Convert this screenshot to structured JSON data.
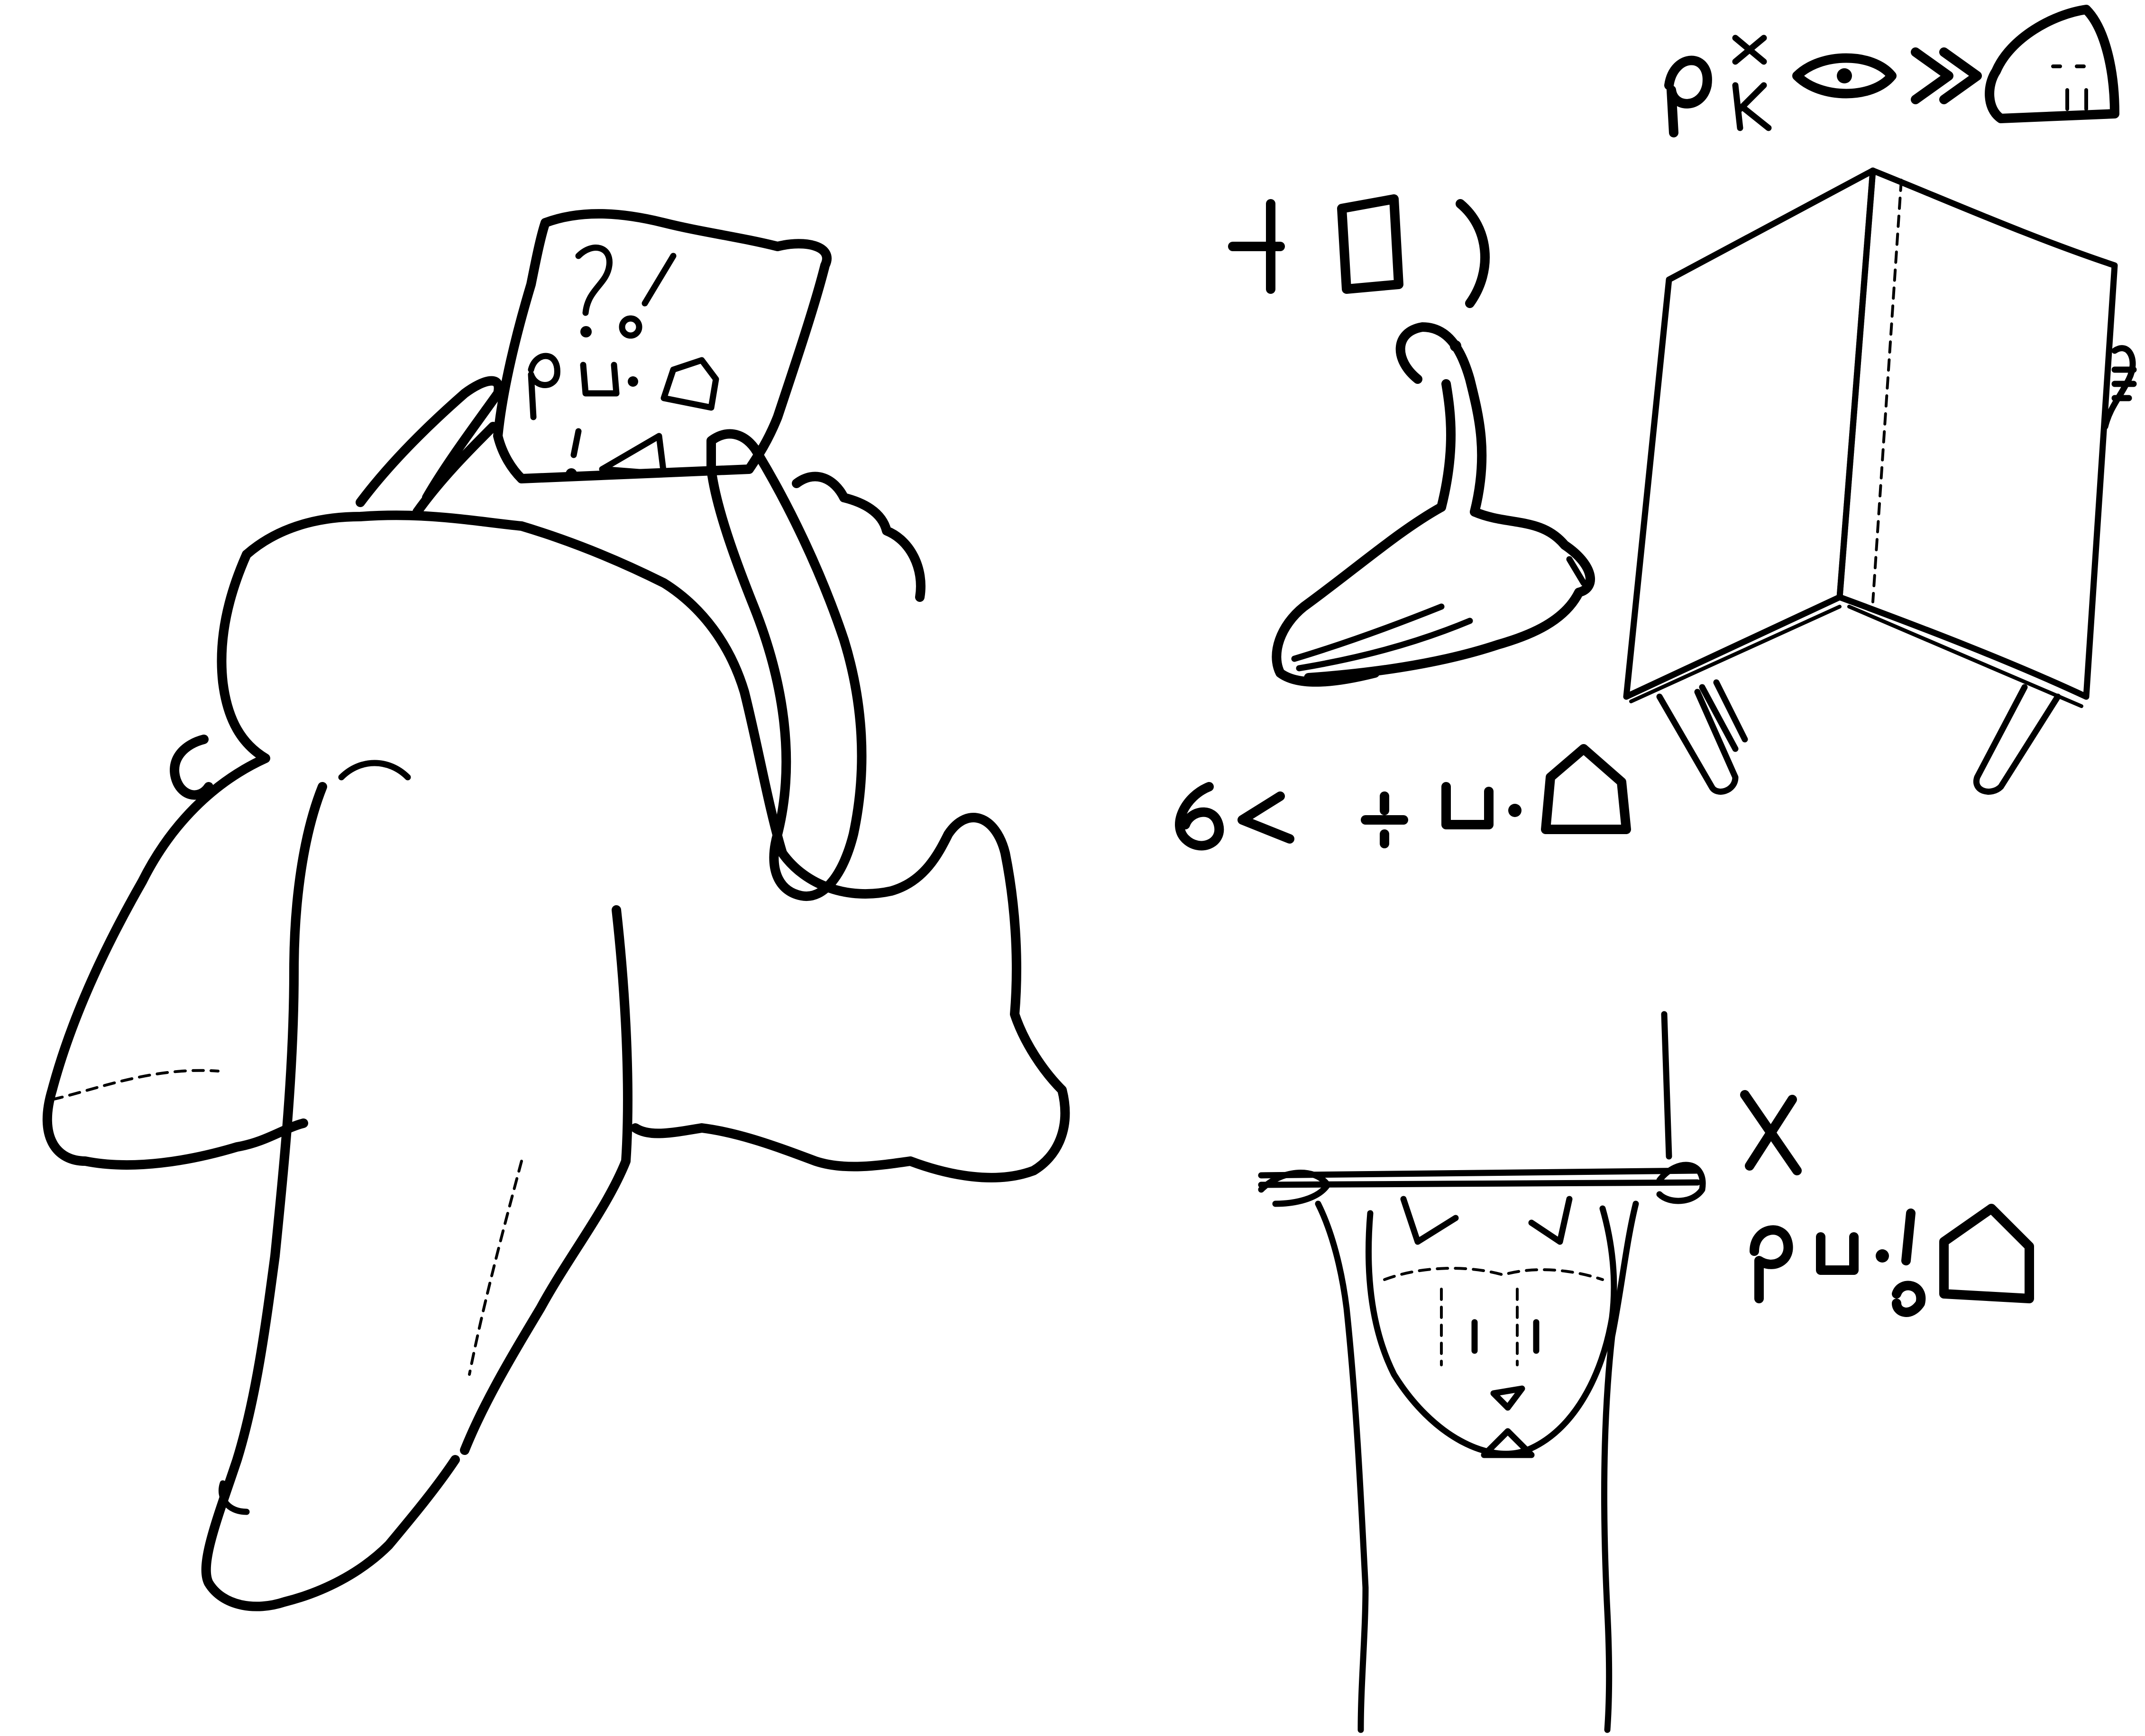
{
  "page": {
    "background_color": "#ffffff",
    "ink_color": "#000000"
  },
  "illustrations": [
    {
      "id": "fist-with-paper",
      "icon": "hand-holding-note-icon",
      "glyphs": [
        "question-mark",
        "exclamation-mark",
        "ordinal-symbol",
        "triangle-symbol"
      ]
    },
    {
      "id": "bird-flying",
      "icon": "bird-icon"
    },
    {
      "id": "person-behind-book",
      "icon": "open-book-icon"
    },
    {
      "id": "house-cat-face",
      "icon": "cat-face-icon"
    },
    {
      "id": "symbol-row-top",
      "icon": "cipher-glyphs-icon"
    },
    {
      "id": "symbol-row-bird",
      "icon": "cipher-glyphs-icon"
    },
    {
      "id": "symbol-row-middle",
      "icon": "cipher-glyphs-icon"
    },
    {
      "id": "symbol-row-bottom",
      "icon": "cipher-glyphs-icon"
    }
  ]
}
